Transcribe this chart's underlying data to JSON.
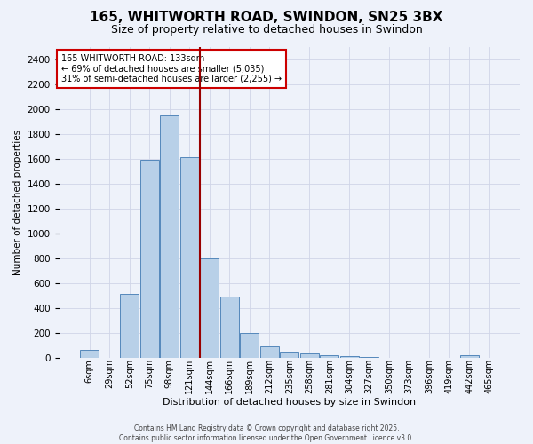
{
  "title": "165, WHITWORTH ROAD, SWINDON, SN25 3BX",
  "subtitle": "Size of property relative to detached houses in Swindon",
  "xlabel": "Distribution of detached houses by size in Swindon",
  "ylabel": "Number of detached properties",
  "footer_line1": "Contains HM Land Registry data © Crown copyright and database right 2025.",
  "footer_line2": "Contains public sector information licensed under the Open Government Licence v3.0.",
  "annotation_line1": "165 WHITWORTH ROAD: 133sqm",
  "annotation_line2": "← 69% of detached houses are smaller (5,035)",
  "annotation_line3": "31% of semi-detached houses are larger (2,255) →",
  "bar_labels": [
    "6sqm",
    "29sqm",
    "52sqm",
    "75sqm",
    "98sqm",
    "121sqm",
    "144sqm",
    "166sqm",
    "189sqm",
    "212sqm",
    "235sqm",
    "258sqm",
    "281sqm",
    "304sqm",
    "327sqm",
    "350sqm",
    "373sqm",
    "396sqm",
    "419sqm",
    "442sqm",
    "465sqm"
  ],
  "bar_values": [
    60,
    0,
    510,
    1590,
    1950,
    1610,
    800,
    490,
    195,
    90,
    45,
    30,
    18,
    10,
    5,
    0,
    0,
    0,
    0,
    15,
    0
  ],
  "bar_color": "#b8d0e8",
  "bar_edge_color": "#5588bb",
  "vline_color": "#990000",
  "annotation_box_edge": "#cc0000",
  "background_color": "#eef2fa",
  "plot_bg_color": "#eef2fa",
  "grid_color": "#d0d5e8",
  "ylim": [
    0,
    2500
  ],
  "yticks": [
    0,
    200,
    400,
    600,
    800,
    1000,
    1200,
    1400,
    1600,
    1800,
    2000,
    2200,
    2400
  ],
  "title_fontsize": 11,
  "subtitle_fontsize": 9
}
